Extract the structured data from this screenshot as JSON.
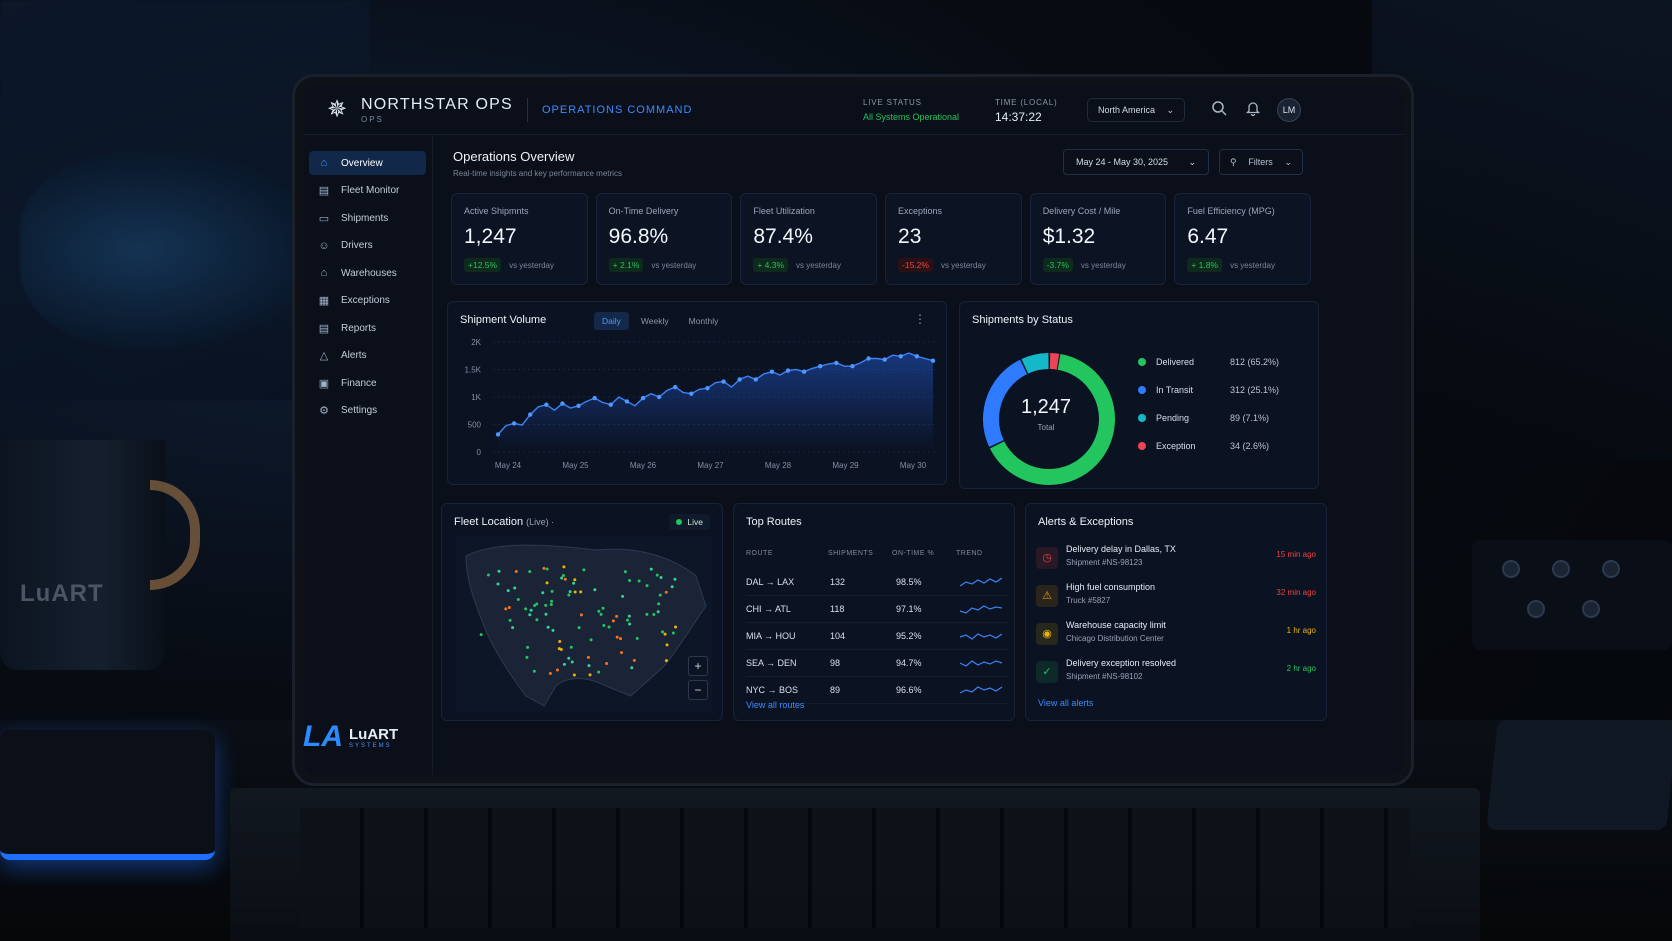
{
  "app": {
    "brand": "NORTHSTAR OPS",
    "brand_sub": "OPS",
    "section": "OPERATIONS COMMAND"
  },
  "header": {
    "live_status_label": "LIVE STATUS",
    "live_status_value": "All Systems Operational",
    "time_label": "TIME (LOCAL)",
    "time_value": "14:37:22",
    "region": "North America",
    "avatar_initials": "LM"
  },
  "sidebar": {
    "items": [
      {
        "label": "Overview",
        "icon": "home-icon",
        "active": true
      },
      {
        "label": "Fleet Monitor",
        "icon": "truck-icon"
      },
      {
        "label": "Shipments",
        "icon": "box-icon"
      },
      {
        "label": "Drivers",
        "icon": "user-icon"
      },
      {
        "label": "Warehouses",
        "icon": "warehouse-icon"
      },
      {
        "label": "Exceptions",
        "icon": "exception-icon"
      },
      {
        "label": "Reports",
        "icon": "report-icon"
      },
      {
        "label": "Alerts",
        "icon": "alert-triangle-icon"
      },
      {
        "label": "Finance",
        "icon": "finance-icon"
      },
      {
        "label": "Settings",
        "icon": "gear-icon"
      }
    ],
    "logo_name": "LuART",
    "logo_sub": "SYSTEMS"
  },
  "page": {
    "title": "Operations Overview",
    "subtitle": "Real-time insights and key performance metrics",
    "date_range": "May 24 - May 30, 2025",
    "filters_label": "Filters"
  },
  "kpis": [
    {
      "label": "Active Shipmnts",
      "value": "1,247",
      "delta": "+12.5%",
      "dir": "up",
      "note": "vs yesterday"
    },
    {
      "label": "On-Time Delivery",
      "value": "96.8%",
      "delta": "+ 2.1%",
      "dir": "up",
      "note": "vs yesterday"
    },
    {
      "label": "Fleet Utilization",
      "value": "87.4%",
      "delta": "+ 4.3%",
      "dir": "up",
      "note": "vs yesterday"
    },
    {
      "label": "Exceptions",
      "value": "23",
      "delta": "-15.2%",
      "dir": "down",
      "note": "vs yesterday"
    },
    {
      "label": "Delivery Cost / Mile",
      "value": "$1.32",
      "delta": "-3.7%",
      "dir": "up",
      "note": "vs yesterday"
    },
    {
      "label": "Fuel Efficiency (MPG)",
      "value": "6.47",
      "delta": "+ 1.8%",
      "dir": "up",
      "note": "vs yesterday"
    }
  ],
  "volume": {
    "title": "Shipment Volume",
    "tabs": [
      "Daily",
      "Weekly",
      "Monthly"
    ],
    "active_tab": "Daily"
  },
  "chart_data": {
    "type": "line",
    "y_ticks": [
      "0",
      "500",
      "1K",
      "1.5K",
      "2K"
    ],
    "ylim": [
      0,
      2000
    ],
    "x_ticks": [
      "May 24",
      "May 25",
      "May 26",
      "May 27",
      "May 28",
      "May 29",
      "May 30"
    ],
    "values": [
      320,
      480,
      520,
      490,
      680,
      820,
      860,
      760,
      880,
      800,
      840,
      920,
      980,
      900,
      860,
      1000,
      920,
      840,
      980,
      1060,
      1000,
      1120,
      1180,
      1080,
      1060,
      1140,
      1160,
      1260,
      1280,
      1180,
      1320,
      1380,
      1320,
      1420,
      1460,
      1400,
      1480,
      1500,
      1460,
      1520,
      1560,
      1600,
      1620,
      1560,
      1560,
      1620,
      1700,
      1700,
      1680,
      1760,
      1740,
      1800,
      1740,
      1700,
      1660
    ]
  },
  "status": {
    "title": "Shipments by Status",
    "total": "1,247",
    "total_label": "Total",
    "items": [
      {
        "name": "Delivered",
        "value": "812 (65.2%)",
        "pct": 65.2,
        "color": "#22c55e"
      },
      {
        "name": "In Transit",
        "value": "312 (25.1%)",
        "pct": 25.1,
        "color": "#2f7bff"
      },
      {
        "name": "Pending",
        "value": "89 (7.1%)",
        "pct": 7.1,
        "color": "#14b8c6"
      },
      {
        "name": "Exception",
        "value": "34 (2.6%)",
        "pct": 2.6,
        "color": "#ef4457"
      }
    ]
  },
  "fleet": {
    "title": "Fleet Location",
    "title_suffix": "(Live) ·",
    "live": "Live",
    "zoom_in": "+",
    "zoom_out": "−"
  },
  "routes": {
    "title": "Top Routes",
    "headers": [
      "ROUTE",
      "SHIPMENTS",
      "ON-TIME %",
      "TREND"
    ],
    "rows": [
      {
        "route": "DAL → LAX",
        "shipments": "132",
        "ontime": "98.5%"
      },
      {
        "route": "CHI → ATL",
        "shipments": "118",
        "ontime": "97.1%"
      },
      {
        "route": "MIA → HOU",
        "shipments": "104",
        "ontime": "95.2%"
      },
      {
        "route": "SEA → DEN",
        "shipments": "98",
        "ontime": "94.7%"
      },
      {
        "route": "NYC → BOS",
        "shipments": "89",
        "ontime": "96.6%"
      }
    ],
    "link": "View all routes"
  },
  "alerts": {
    "title": "Alerts & Exceptions",
    "items": [
      {
        "title": "Delivery delay in Dallas, TX",
        "sub": "Shipment #NS-98123",
        "time": "15 min ago",
        "color": "#ef4444",
        "icon": "clock-icon"
      },
      {
        "title": "High fuel consumption",
        "sub": "Truck #5827",
        "time": "32 min ago",
        "color": "#f59e0b",
        "icon": "warning-icon"
      },
      {
        "title": "Warehouse capacity limit",
        "sub": "Chicago Distribution Center",
        "time": "1 hr ago",
        "color": "#eab308",
        "icon": "warehouse-alert-icon"
      },
      {
        "title": "Delivery exception resolved",
        "sub": "Shipment #NS-98102",
        "time": "2 hr ago",
        "color": "#22c55e",
        "icon": "check-icon"
      }
    ],
    "link": "View all alerts"
  },
  "scene": {
    "mug_logo": "LuART"
  }
}
